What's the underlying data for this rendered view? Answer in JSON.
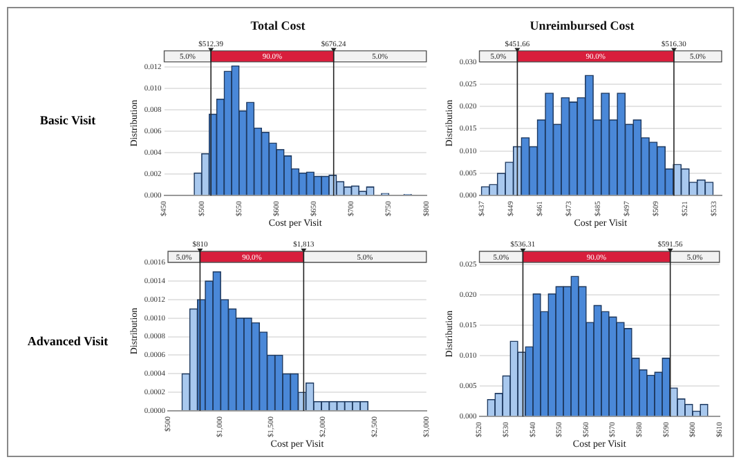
{
  "chart_data": [
    {
      "type": "histogram",
      "title": "Total Cost",
      "xlabel": "Cost per Visit",
      "ylabel": "Distribution",
      "annotations": [
        "Basic Visit"
      ],
      "bins": [
        490,
        500,
        510,
        520,
        530,
        540,
        550,
        560,
        570,
        580,
        590,
        600,
        610,
        620,
        630,
        640,
        650,
        660,
        670,
        680,
        690,
        700,
        710,
        720,
        730,
        740,
        750,
        760,
        770,
        780,
        790
      ],
      "values": [
        0.0021,
        0.0039,
        0.0076,
        0.009,
        0.0116,
        0.0121,
        0.0079,
        0.0087,
        0.0063,
        0.0059,
        0.0049,
        0.0043,
        0.0037,
        0.0025,
        0.0021,
        0.0022,
        0.0018,
        0.0018,
        0.0019,
        0.0013,
        0.0008,
        0.0009,
        0.0004,
        0.0008,
        0,
        0.0002,
        0,
        0,
        0.0001,
        0
      ],
      "colors": [
        "#a8c8ee",
        "#a8c8ee",
        "#4a88d8",
        "#4a88d8",
        "#4a88d8",
        "#4a88d8",
        "#4a88d8",
        "#4a88d8",
        "#4a88d8",
        "#4a88d8",
        "#4a88d8",
        "#4a88d8",
        "#4a88d8",
        "#4a88d8",
        "#4a88d8",
        "#4a88d8",
        "#4a88d8",
        "#4a88d8",
        "#a8c8ee",
        "#a8c8ee",
        "#a8c8ee",
        "#a8c8ee",
        "#a8c8ee",
        "#a8c8ee",
        "#a8c8ee",
        "#a8c8ee",
        "#a8c8ee",
        "#a8c8ee",
        "#a8c8ee",
        "#a8c8ee"
      ],
      "xlim": [
        450,
        800
      ],
      "xticks": [
        {
          "value": 450,
          "label": "$450"
        },
        {
          "value": 500,
          "label": "$500"
        },
        {
          "value": 550,
          "label": "$550"
        },
        {
          "value": 600,
          "label": "$600"
        },
        {
          "value": 650,
          "label": "$650"
        },
        {
          "value": 700,
          "label": "$700"
        },
        {
          "value": 750,
          "label": "$750"
        },
        {
          "value": 800,
          "label": "$800"
        }
      ],
      "ylim": [
        0,
        0.0135
      ],
      "yticks": [
        {
          "value": 0,
          "label": "0.000"
        },
        {
          "value": 0.002,
          "label": "0.002"
        },
        {
          "value": 0.004,
          "label": "0.004"
        },
        {
          "value": 0.006,
          "label": "0.006"
        },
        {
          "value": 0.008,
          "label": "0.008"
        },
        {
          "value": 0.01,
          "label": "0.010"
        },
        {
          "value": 0.012,
          "label": "0.012"
        }
      ],
      "grid": "y",
      "legend": false,
      "ref_lines": [
        {
          "axis": "x",
          "value": 512.39,
          "label": "$512.39"
        },
        {
          "axis": "x",
          "value": 676.24,
          "label": "$676.24"
        }
      ],
      "bands": [
        {
          "axis": "x",
          "from": 450,
          "to": 512.39,
          "label": "5.0%",
          "color": "#f2f2f2"
        },
        {
          "axis": "x",
          "from": 512.39,
          "to": 676.24,
          "label": "90.0%",
          "color": "#d81e3c"
        },
        {
          "axis": "x",
          "from": 676.24,
          "to": 800,
          "label": "5.0%",
          "color": "#f2f2f2"
        }
      ]
    },
    {
      "type": "histogram",
      "title": "Unreimbursed Cost",
      "xlabel": "Cost per Visit",
      "ylabel": "Distribution",
      "bins": [
        436.8,
        440.1,
        443.4,
        446.7,
        450.0,
        453.3,
        456.6,
        459.9,
        463.2,
        466.5,
        469.8,
        473.1,
        476.4,
        479.7,
        483.0,
        486.3,
        489.6,
        492.9,
        496.2,
        499.5,
        502.8,
        506.1,
        509.4,
        512.7,
        516.0,
        519.3,
        522.6,
        525.9,
        529.2,
        532.5
      ],
      "values": [
        0.002,
        0.0025,
        0.005,
        0.0075,
        0.011,
        0.013,
        0.011,
        0.017,
        0.023,
        0.016,
        0.022,
        0.021,
        0.022,
        0.027,
        0.017,
        0.023,
        0.017,
        0.023,
        0.016,
        0.017,
        0.013,
        0.012,
        0.011,
        0.006,
        0.007,
        0.006,
        0.003,
        0.0035,
        0.003
      ],
      "colors": [
        "#a8c8ee",
        "#a8c8ee",
        "#a8c8ee",
        "#a8c8ee",
        "#a8c8ee",
        "#4a88d8",
        "#4a88d8",
        "#4a88d8",
        "#4a88d8",
        "#4a88d8",
        "#4a88d8",
        "#4a88d8",
        "#4a88d8",
        "#4a88d8",
        "#4a88d8",
        "#4a88d8",
        "#4a88d8",
        "#4a88d8",
        "#4a88d8",
        "#4a88d8",
        "#4a88d8",
        "#4a88d8",
        "#4a88d8",
        "#4a88d8",
        "#a8c8ee",
        "#a8c8ee",
        "#a8c8ee",
        "#a8c8ee",
        "#a8c8ee"
      ],
      "xlim": [
        436,
        536
      ],
      "xticks": [
        {
          "value": 437,
          "label": "$437"
        },
        {
          "value": 449,
          "label": "$449"
        },
        {
          "value": 461,
          "label": "$461"
        },
        {
          "value": 473,
          "label": "$473"
        },
        {
          "value": 485,
          "label": "$485"
        },
        {
          "value": 497,
          "label": "$497"
        },
        {
          "value": 509,
          "label": "$509"
        },
        {
          "value": 521,
          "label": "$521"
        },
        {
          "value": 533,
          "label": "$533"
        }
      ],
      "ylim": [
        0,
        0.0325
      ],
      "yticks": [
        {
          "value": 0,
          "label": "0.000"
        },
        {
          "value": 0.005,
          "label": "0.005"
        },
        {
          "value": 0.01,
          "label": "0.010"
        },
        {
          "value": 0.015,
          "label": "0.015"
        },
        {
          "value": 0.02,
          "label": "0.020"
        },
        {
          "value": 0.025,
          "label": "0.025"
        },
        {
          "value": 0.03,
          "label": "0.030"
        }
      ],
      "grid": "y",
      "legend": false,
      "ref_lines": [
        {
          "axis": "x",
          "value": 451.66,
          "label": "$451.66"
        },
        {
          "axis": "x",
          "value": 516.3,
          "label": "$516.30"
        }
      ],
      "bands": [
        {
          "axis": "x",
          "from": 436,
          "to": 451.66,
          "label": "5.0%",
          "color": "#f2f2f2"
        },
        {
          "axis": "x",
          "from": 451.66,
          "to": 516.3,
          "label": "90.0%",
          "color": "#d81e3c"
        },
        {
          "axis": "x",
          "from": 516.3,
          "to": 536,
          "label": "5.0%",
          "color": "#f2f2f2"
        }
      ]
    },
    {
      "type": "histogram",
      "xlabel": "Cost per Visit",
      "ylabel": "Distribution",
      "annotations": [
        "Advanced Visit"
      ],
      "bins": [
        635,
        710,
        785,
        860,
        935,
        1010,
        1085,
        1160,
        1235,
        1310,
        1385,
        1460,
        1535,
        1610,
        1685,
        1760,
        1835,
        1910,
        1985,
        2060,
        2135,
        2210,
        2285,
        2360,
        2435,
        2510,
        2585,
        2660,
        2735
      ],
      "values": [
        0.0004,
        0.0011,
        0.0012,
        0.0014,
        0.0015,
        0.0012,
        0.0011,
        0.001,
        0.001,
        0.00095,
        0.00085,
        0.0006,
        0.0006,
        0.0004,
        0.0004,
        0.0002,
        0.0003,
        0.0001,
        0.0001,
        0.0001,
        0.0001,
        0.0001,
        0.0001,
        0.0001,
        0,
        0,
        0,
        0
      ],
      "colors": [
        "#a8c8ee",
        "#a8c8ee",
        "#4a88d8",
        "#4a88d8",
        "#4a88d8",
        "#4a88d8",
        "#4a88d8",
        "#4a88d8",
        "#4a88d8",
        "#4a88d8",
        "#4a88d8",
        "#4a88d8",
        "#4a88d8",
        "#4a88d8",
        "#4a88d8",
        "#a8c8ee",
        "#a8c8ee",
        "#a8c8ee",
        "#a8c8ee",
        "#a8c8ee",
        "#a8c8ee",
        "#a8c8ee",
        "#a8c8ee",
        "#a8c8ee",
        "#a8c8ee",
        "#a8c8ee",
        "#a8c8ee",
        "#a8c8ee"
      ],
      "xlim": [
        500,
        3000
      ],
      "xticks": [
        {
          "value": 500,
          "label": "$500"
        },
        {
          "value": 1000,
          "label": "$1,000"
        },
        {
          "value": 1500,
          "label": "$1,500"
        },
        {
          "value": 2000,
          "label": "$2,000"
        },
        {
          "value": 2500,
          "label": "$2,500"
        },
        {
          "value": 3000,
          "label": "$3,000"
        }
      ],
      "ylim": [
        0,
        0.00172
      ],
      "yticks": [
        {
          "value": 0,
          "label": "0.0000"
        },
        {
          "value": 0.0002,
          "label": "0.0002"
        },
        {
          "value": 0.0004,
          "label": "0.0004"
        },
        {
          "value": 0.0006,
          "label": "0.0006"
        },
        {
          "value": 0.0008,
          "label": "0.0008"
        },
        {
          "value": 0.001,
          "label": "0.0010"
        },
        {
          "value": 0.0012,
          "label": "0.0012"
        },
        {
          "value": 0.0014,
          "label": "0.0014"
        },
        {
          "value": 0.0016,
          "label": "0.0016"
        }
      ],
      "grid": "y",
      "legend": false,
      "ref_lines": [
        {
          "axis": "x",
          "value": 810,
          "label": "$810"
        },
        {
          "axis": "x",
          "value": 1813,
          "label": "$1,813"
        }
      ],
      "bands": [
        {
          "axis": "x",
          "from": 500,
          "to": 810,
          "label": "5.0%",
          "color": "#f2f2f2"
        },
        {
          "axis": "x",
          "from": 810,
          "to": 1813,
          "label": "90.0%",
          "color": "#d81e3c"
        },
        {
          "axis": "x",
          "from": 1813,
          "to": 3000,
          "label": "5.0%",
          "color": "#f2f2f2"
        }
      ]
    },
    {
      "type": "histogram",
      "xlabel": "Cost per Visit",
      "ylabel": "Distribution",
      "bins": [
        523,
        525.85,
        528.7,
        531.55,
        534.4,
        537.25,
        540.1,
        542.95,
        545.8,
        548.65,
        551.5,
        554.35,
        557.2,
        560.05,
        562.9,
        565.75,
        568.6,
        571.45,
        574.3,
        577.15,
        580,
        582.85,
        585.7,
        588.55,
        591.4,
        594.25,
        597.1,
        599.95,
        602.8,
        605.65
      ],
      "values": [
        0.0028,
        0.0038,
        0.0067,
        0.0124,
        0.0106,
        0.0115,
        0.0202,
        0.0173,
        0.0202,
        0.0214,
        0.0214,
        0.0231,
        0.0214,
        0.0155,
        0.0183,
        0.0173,
        0.0164,
        0.0155,
        0.0145,
        0.0096,
        0.0077,
        0.0068,
        0.0073,
        0.0096,
        0.0047,
        0.0029,
        0.002,
        0.0009,
        0.002
      ],
      "colors": [
        "#a8c8ee",
        "#a8c8ee",
        "#a8c8ee",
        "#a8c8ee",
        "#a8c8ee",
        "#4a88d8",
        "#4a88d8",
        "#4a88d8",
        "#4a88d8",
        "#4a88d8",
        "#4a88d8",
        "#4a88d8",
        "#4a88d8",
        "#4a88d8",
        "#4a88d8",
        "#4a88d8",
        "#4a88d8",
        "#4a88d8",
        "#4a88d8",
        "#4a88d8",
        "#4a88d8",
        "#4a88d8",
        "#4a88d8",
        "#4a88d8",
        "#a8c8ee",
        "#a8c8ee",
        "#a8c8ee",
        "#a8c8ee",
        "#a8c8ee"
      ],
      "xlim": [
        520,
        610
      ],
      "xticks": [
        {
          "value": 520,
          "label": "$520"
        },
        {
          "value": 530,
          "label": "$530"
        },
        {
          "value": 540,
          "label": "$540"
        },
        {
          "value": 550,
          "label": "$550"
        },
        {
          "value": 560,
          "label": "$560"
        },
        {
          "value": 570,
          "label": "$570"
        },
        {
          "value": 580,
          "label": "$580"
        },
        {
          "value": 590,
          "label": "$590"
        },
        {
          "value": 600,
          "label": "$600"
        },
        {
          "value": 610,
          "label": "$610"
        }
      ],
      "ylim": [
        0,
        0.0272
      ],
      "yticks": [
        {
          "value": 0,
          "label": "0.000"
        },
        {
          "value": 0.005,
          "label": "0.005"
        },
        {
          "value": 0.01,
          "label": "0.010"
        },
        {
          "value": 0.015,
          "label": "0.015"
        },
        {
          "value": 0.02,
          "label": "0.020"
        },
        {
          "value": 0.025,
          "label": "0.025"
        }
      ],
      "grid": "y",
      "legend": false,
      "ref_lines": [
        {
          "axis": "x",
          "value": 536.31,
          "label": "$536.31"
        },
        {
          "axis": "x",
          "value": 591.56,
          "label": "$591.56"
        }
      ],
      "bands": [
        {
          "axis": "x",
          "from": 520,
          "to": 536.31,
          "label": "5.0%",
          "color": "#f2f2f2"
        },
        {
          "axis": "x",
          "from": 536.31,
          "to": 591.56,
          "label": "90.0%",
          "color": "#d81e3c"
        },
        {
          "axis": "x",
          "from": 591.56,
          "to": 610,
          "label": "5.0%",
          "color": "#f2f2f2"
        }
      ]
    }
  ]
}
